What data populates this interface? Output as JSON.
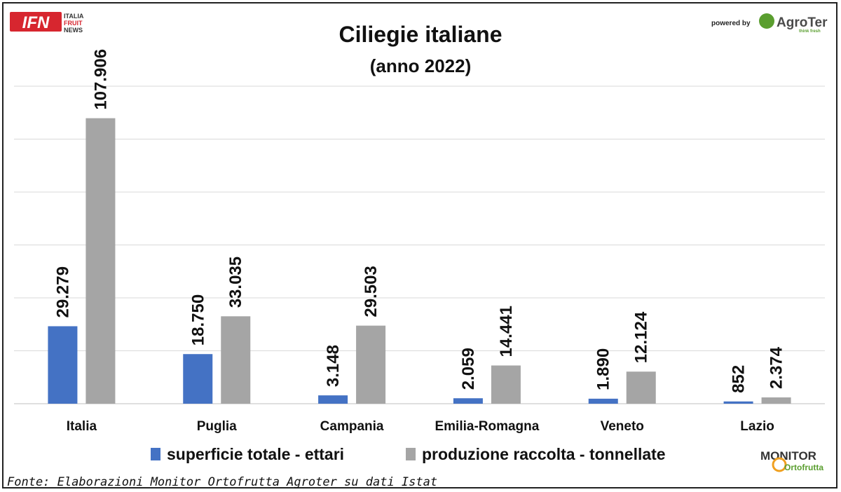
{
  "logos": {
    "ifn_mark": "IFN",
    "ifn_lines": [
      "ITALIA",
      "FRUIT",
      "NEWS"
    ],
    "powered_by": "powered by",
    "agroter": "AgroTer",
    "agroter_tag": "think fresh",
    "monitor_top": "MONITOR",
    "monitor_bottom": "Ortofrutta"
  },
  "source": "Fonte: Elaborazioni Monitor Ortofrutta Agroter su dati Istat",
  "colors": {
    "series1": "#4472C4",
    "series2": "#A5A5A5",
    "grid": "#d9d9d9",
    "ifn_red": "#d7262f",
    "agroter_green": "#5a9e2f",
    "monitor_orange": "#f0a020"
  },
  "chart_data": {
    "type": "bar",
    "title": "Ciliegie italiane",
    "subtitle": "(anno 2022)",
    "categories": [
      "Italia",
      "Puglia",
      "Campania",
      "Emilia-Romagna",
      "Veneto",
      "Lazio"
    ],
    "series": [
      {
        "name": "superficie totale - ettari",
        "values": [
          29279,
          18750,
          3148,
          2059,
          1890,
          852
        ],
        "labels": [
          "29.279",
          "18.750",
          "3.148",
          "2.059",
          "1.890",
          "852"
        ]
      },
      {
        "name": "produzione raccolta - tonnellate",
        "values": [
          107906,
          33035,
          29503,
          14441,
          12124,
          2374
        ],
        "labels": [
          "107.906",
          "33.035",
          "29.503",
          "14.441",
          "12.124",
          "2.374"
        ]
      }
    ],
    "ylim": [
      0,
      120000
    ],
    "grid": true,
    "legend_position": "bottom",
    "data_labels": "rotated"
  }
}
